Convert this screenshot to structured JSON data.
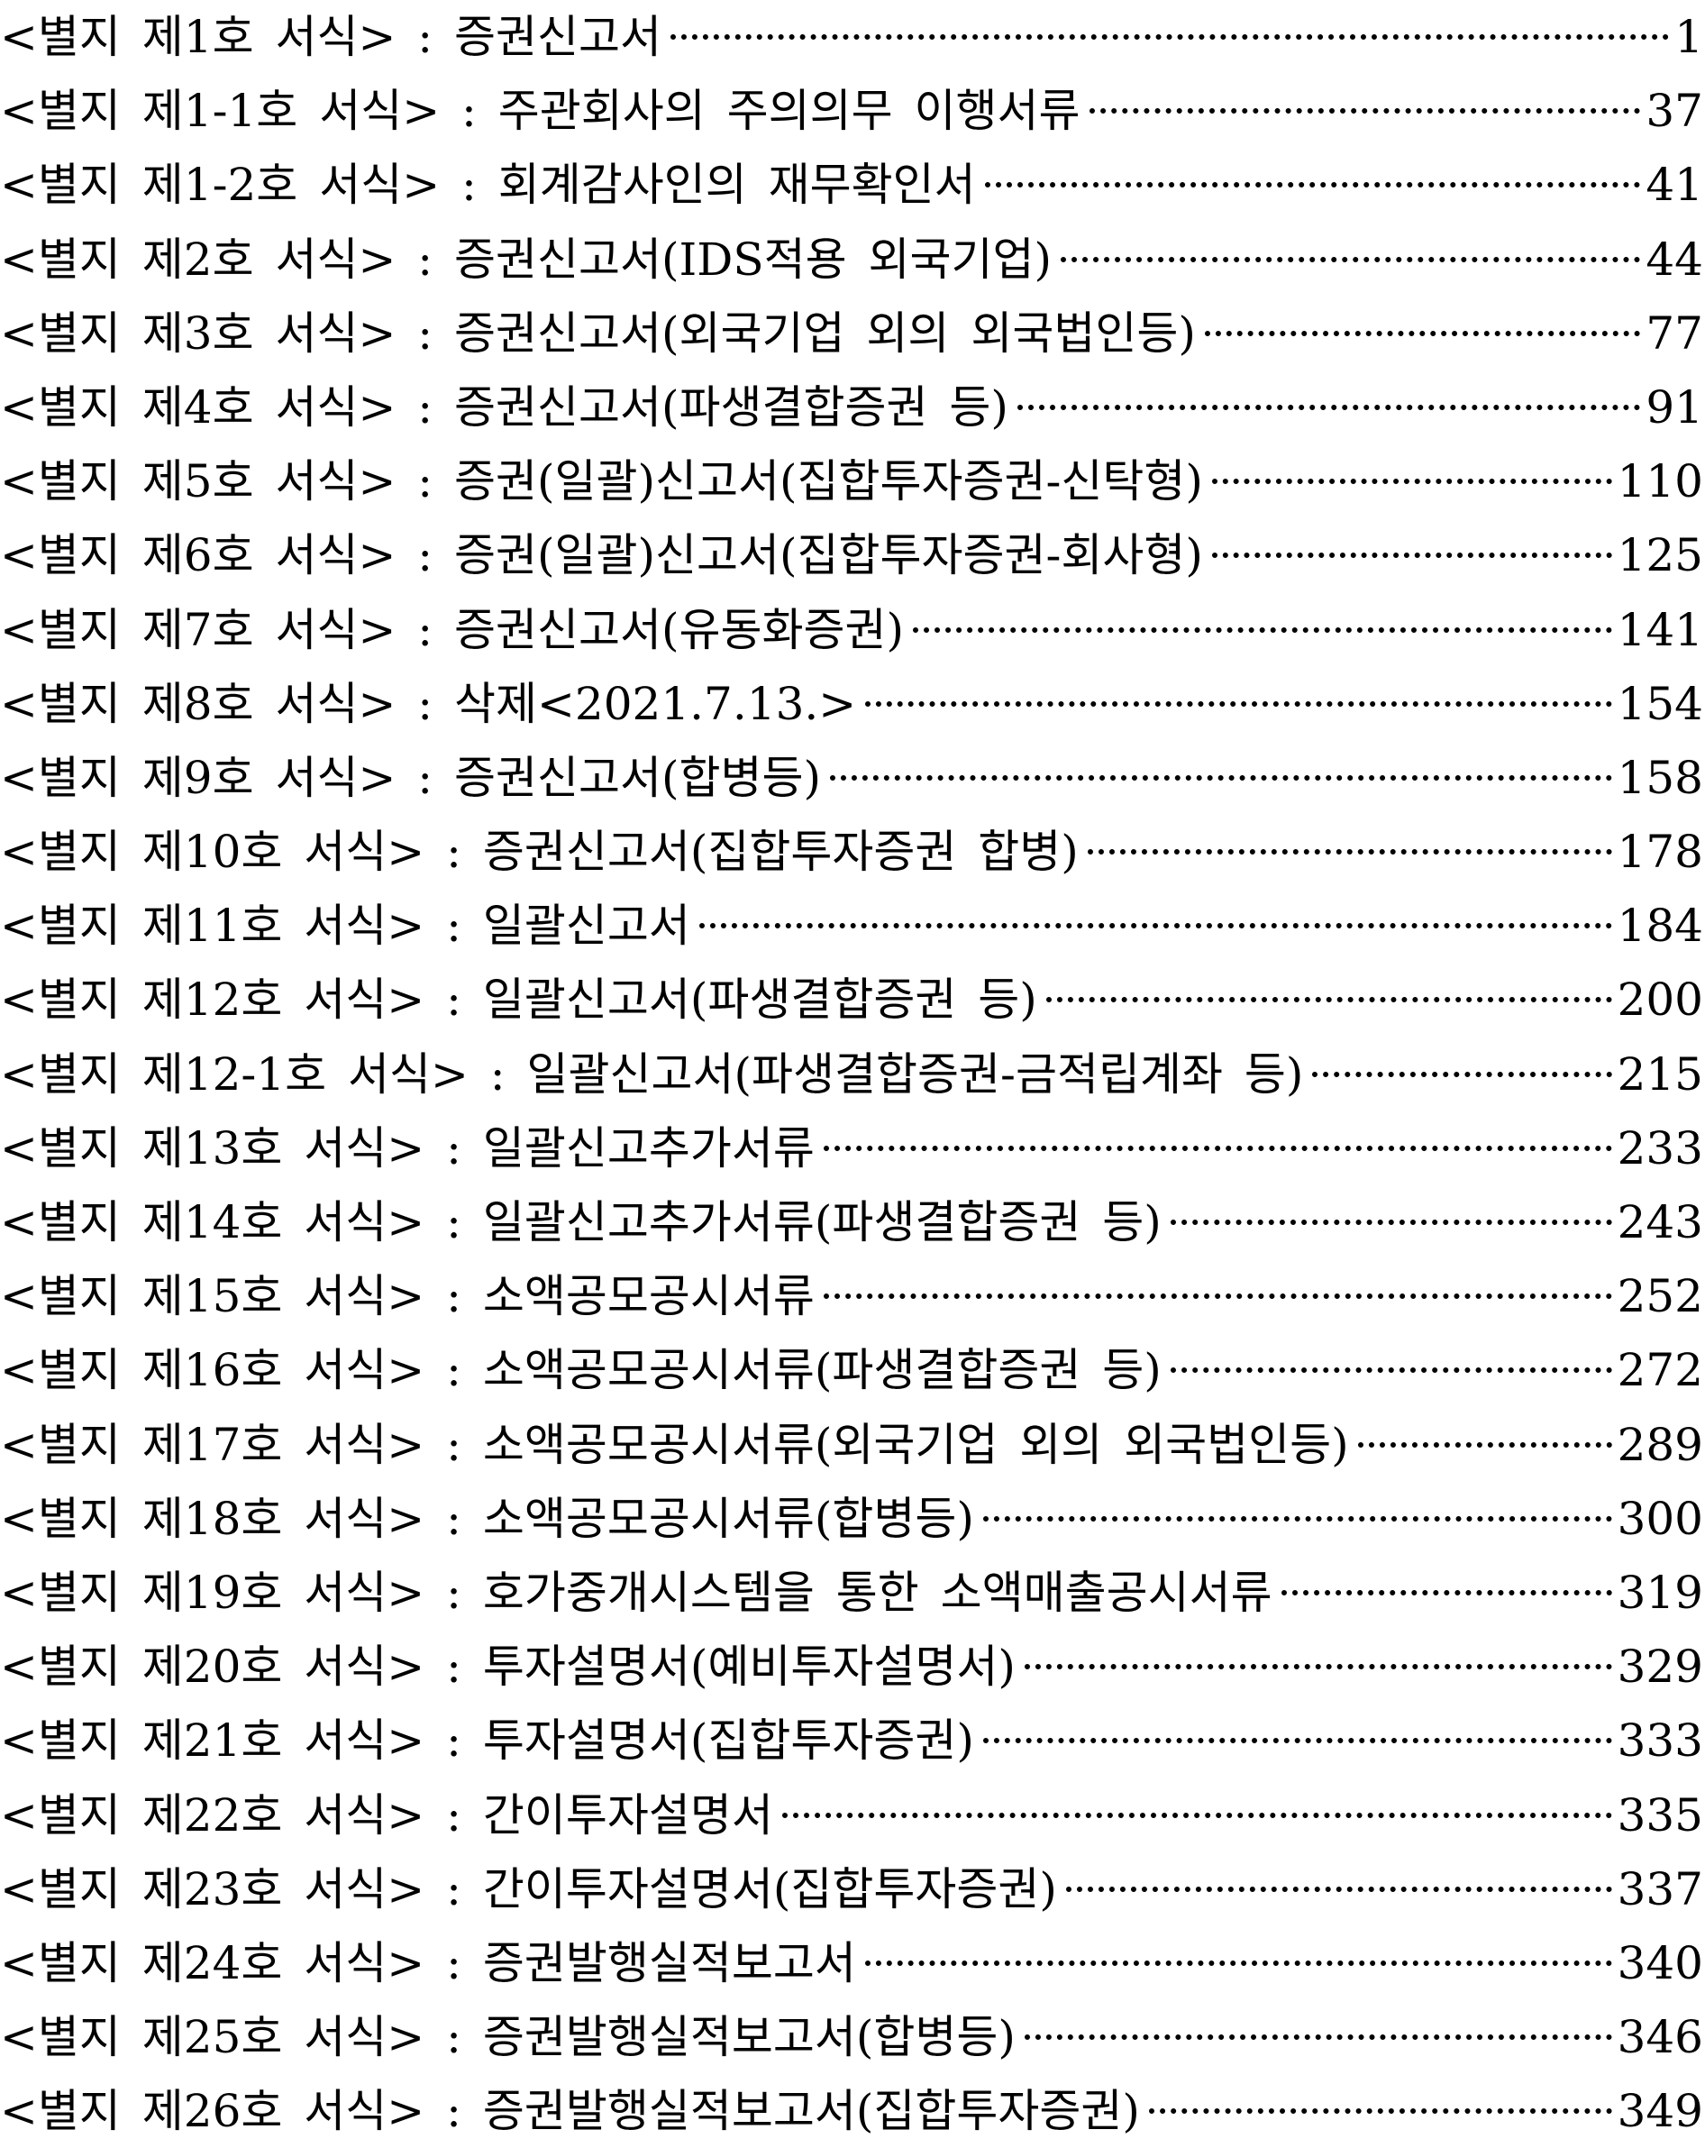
{
  "toc": {
    "entries": [
      {
        "title": "<별지 제1호 서식> : 증권신고서",
        "page": "1"
      },
      {
        "title": "<별지 제1-1호 서식> : 주관회사의 주의의무 이행서류",
        "page": "37"
      },
      {
        "title": "<별지 제1-2호 서식> : 회계감사인의 재무확인서",
        "page": "41"
      },
      {
        "title": "<별지 제2호 서식> : 증권신고서(IDS적용 외국기업)",
        "page": "44"
      },
      {
        "title": "<별지 제3호 서식> : 증권신고서(외국기업 외의 외국법인등)",
        "page": "77"
      },
      {
        "title": "<별지 제4호 서식> : 증권신고서(파생결합증권 등)",
        "page": "91"
      },
      {
        "title": "<별지 제5호 서식> : 증권(일괄)신고서(집합투자증권-신탁형)",
        "page": "110"
      },
      {
        "title": "<별지 제6호 서식> : 증권(일괄)신고서(집합투자증권-회사형)",
        "page": "125"
      },
      {
        "title": "<별지 제7호 서식> : 증권신고서(유동화증권)",
        "page": "141"
      },
      {
        "title": "<별지 제8호 서식> : 삭제<2021.7.13.>",
        "page": "154"
      },
      {
        "title": "<별지 제9호 서식> : 증권신고서(합병등)",
        "page": "158"
      },
      {
        "title": "<별지 제10호 서식> : 증권신고서(집합투자증권 합병)",
        "page": "178"
      },
      {
        "title": "<별지 제11호 서식> : 일괄신고서",
        "page": "184"
      },
      {
        "title": "<별지 제12호 서식> : 일괄신고서(파생결합증권 등)",
        "page": "200"
      },
      {
        "title": "<별지 제12-1호 서식> : 일괄신고서(파생결합증권-금적립계좌 등)",
        "page": "215"
      },
      {
        "title": "<별지 제13호 서식> : 일괄신고추가서류",
        "page": "233"
      },
      {
        "title": "<별지 제14호 서식> : 일괄신고추가서류(파생결합증권 등)",
        "page": "243"
      },
      {
        "title": "<별지 제15호 서식> : 소액공모공시서류",
        "page": "252"
      },
      {
        "title": "<별지 제16호 서식> : 소액공모공시서류(파생결합증권 등)",
        "page": "272"
      },
      {
        "title": "<별지 제17호 서식> : 소액공모공시서류(외국기업 외의 외국법인등)",
        "page": "289"
      },
      {
        "title": "<별지 제18호 서식> : 소액공모공시서류(합병등)",
        "page": "300"
      },
      {
        "title": "<별지 제19호 서식> : 호가중개시스템을 통한 소액매출공시서류",
        "page": "319"
      },
      {
        "title": "<별지 제20호 서식> : 투자설명서(예비투자설명서)",
        "page": "329"
      },
      {
        "title": "<별지 제21호 서식> : 투자설명서(집합투자증권)",
        "page": "333"
      },
      {
        "title": "<별지 제22호 서식> : 간이투자설명서",
        "page": "335"
      },
      {
        "title": "<별지 제23호 서식> : 간이투자설명서(집합투자증권)",
        "page": "337"
      },
      {
        "title": "<별지 제24호 서식> : 증권발행실적보고서",
        "page": "340"
      },
      {
        "title": "<별지 제25호 서식> : 증권발행실적보고서(합병등)",
        "page": "346"
      },
      {
        "title": "<별지 제26호 서식> : 증권발행실적보고서(집합투자증권)",
        "page": "349"
      }
    ]
  }
}
